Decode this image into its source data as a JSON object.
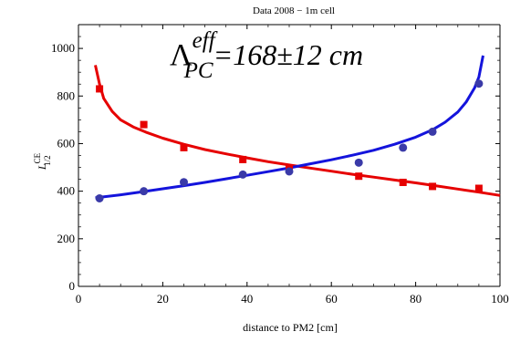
{
  "chart_data": {
    "type": "scatter",
    "title": "Data 2008 − 1m cell",
    "xlabel": "distance to PM2 [cm]",
    "ylabel": {
      "main": "L",
      "sup": "CE",
      "sub": "1/2"
    },
    "xlim": [
      0,
      100
    ],
    "ylim": [
      0,
      1100
    ],
    "x_ticks": [
      "0",
      "20",
      "40",
      "60",
      "80",
      "100"
    ],
    "y_ticks": [
      "0",
      "200",
      "400",
      "600",
      "800",
      "1000"
    ],
    "grid": false,
    "annotation": {
      "symbol": "Λ",
      "superscript": "eff",
      "subscript": "PC",
      "value": "=168±12 cm"
    },
    "series": [
      {
        "color": "#e60000",
        "marker": "square",
        "points": [
          {
            "x": 5,
            "y": 830
          },
          {
            "x": 15.5,
            "y": 680
          },
          {
            "x": 25,
            "y": 583
          },
          {
            "x": 39,
            "y": 533
          },
          {
            "x": 50,
            "y": 497
          },
          {
            "x": 66.5,
            "y": 463
          },
          {
            "x": 77,
            "y": 437
          },
          {
            "x": 84,
            "y": 420
          },
          {
            "x": 95,
            "y": 412
          }
        ],
        "fit": [
          {
            "x": 4,
            "y": 930
          },
          {
            "x": 5,
            "y": 850
          },
          {
            "x": 6,
            "y": 790
          },
          {
            "x": 8,
            "y": 735
          },
          {
            "x": 10,
            "y": 700
          },
          {
            "x": 13,
            "y": 670
          },
          {
            "x": 16,
            "y": 648
          },
          {
            "x": 20,
            "y": 623
          },
          {
            "x": 25,
            "y": 597
          },
          {
            "x": 30,
            "y": 575
          },
          {
            "x": 35,
            "y": 557
          },
          {
            "x": 40,
            "y": 540
          },
          {
            "x": 45,
            "y": 524
          },
          {
            "x": 50,
            "y": 510
          },
          {
            "x": 55,
            "y": 497
          },
          {
            "x": 60,
            "y": 484
          },
          {
            "x": 65,
            "y": 471
          },
          {
            "x": 70,
            "y": 459
          },
          {
            "x": 75,
            "y": 447
          },
          {
            "x": 80,
            "y": 435
          },
          {
            "x": 85,
            "y": 422
          },
          {
            "x": 90,
            "y": 409
          },
          {
            "x": 95,
            "y": 396
          },
          {
            "x": 100,
            "y": 382
          }
        ]
      },
      {
        "color": "#3a3aa8",
        "line_color": "#1414dc",
        "marker": "circle",
        "points": [
          {
            "x": 5,
            "y": 370
          },
          {
            "x": 15.5,
            "y": 400
          },
          {
            "x": 25,
            "y": 438
          },
          {
            "x": 39,
            "y": 470
          },
          {
            "x": 50,
            "y": 483
          },
          {
            "x": 66.5,
            "y": 520
          },
          {
            "x": 77,
            "y": 583
          },
          {
            "x": 84,
            "y": 650
          },
          {
            "x": 95,
            "y": 852
          }
        ],
        "fit": [
          {
            "x": 4,
            "y": 372
          },
          {
            "x": 10,
            "y": 385
          },
          {
            "x": 15,
            "y": 397
          },
          {
            "x": 20,
            "y": 410
          },
          {
            "x": 25,
            "y": 423
          },
          {
            "x": 30,
            "y": 437
          },
          {
            "x": 35,
            "y": 452
          },
          {
            "x": 40,
            "y": 467
          },
          {
            "x": 45,
            "y": 482
          },
          {
            "x": 50,
            "y": 498
          },
          {
            "x": 55,
            "y": 515
          },
          {
            "x": 60,
            "y": 532
          },
          {
            "x": 65,
            "y": 551
          },
          {
            "x": 70,
            "y": 572
          },
          {
            "x": 75,
            "y": 597
          },
          {
            "x": 80,
            "y": 627
          },
          {
            "x": 84,
            "y": 658
          },
          {
            "x": 87,
            "y": 690
          },
          {
            "x": 90,
            "y": 733
          },
          {
            "x": 92,
            "y": 775
          },
          {
            "x": 94,
            "y": 835
          },
          {
            "x": 95,
            "y": 880
          },
          {
            "x": 96,
            "y": 970
          }
        ]
      }
    ]
  }
}
